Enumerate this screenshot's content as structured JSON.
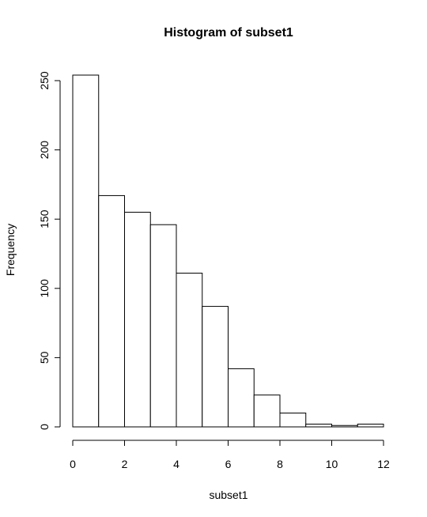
{
  "chart_data": {
    "type": "bar",
    "title": "Histogram of subset1",
    "xlabel": "subset1",
    "ylabel": "Frequency",
    "bins": [
      {
        "from": 0,
        "to": 1,
        "count": 254
      },
      {
        "from": 1,
        "to": 2,
        "count": 167
      },
      {
        "from": 2,
        "to": 3,
        "count": 155
      },
      {
        "from": 3,
        "to": 4,
        "count": 146
      },
      {
        "from": 4,
        "to": 5,
        "count": 111
      },
      {
        "from": 5,
        "to": 6,
        "count": 87
      },
      {
        "from": 6,
        "to": 7,
        "count": 42
      },
      {
        "from": 7,
        "to": 8,
        "count": 23
      },
      {
        "from": 8,
        "to": 9,
        "count": 10
      },
      {
        "from": 9,
        "to": 10,
        "count": 2
      },
      {
        "from": 10,
        "to": 11,
        "count": 1
      },
      {
        "from": 11,
        "to": 12,
        "count": 2
      }
    ],
    "xlim": [
      0,
      12
    ],
    "ylim": [
      0,
      254
    ],
    "x_ticks": [
      0,
      2,
      4,
      6,
      8,
      10,
      12
    ],
    "y_ticks": [
      0,
      50,
      100,
      150,
      200,
      250
    ],
    "grid": false,
    "legend": "none",
    "colors": {
      "bar_fill": "#ffffff",
      "bar_stroke": "#000000"
    }
  }
}
